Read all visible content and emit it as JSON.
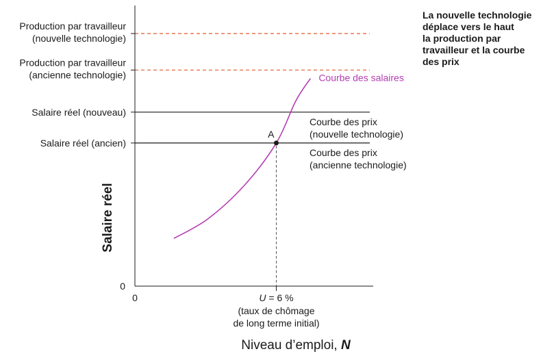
{
  "chart_data": {
    "type": "line",
    "title": "",
    "xlabel": "Niveau d’emploi, ",
    "xlabel_var": "N",
    "ylabel": "Salaire réel",
    "x_origin_label": "0",
    "y_origin_label": "0",
    "horizontal_lines": [
      {
        "name": "prod_new",
        "label_lines": [
          "Production par travailleur",
          "(nouvelle technologie)"
        ],
        "style": "dashed",
        "color": "#e0592a",
        "level": 0.9
      },
      {
        "name": "prod_old",
        "label_lines": [
          "Production par travailleur",
          "(ancienne technologie)"
        ],
        "style": "dashed",
        "color": "#e0592a",
        "level": 0.77
      },
      {
        "name": "wage_new",
        "label": "Salaire réel (nouveau)",
        "right_label_lines": [
          "Courbe des prix",
          "(nouvelle technologie)"
        ],
        "style": "solid",
        "color": "#1a1a1a",
        "level": 0.62
      },
      {
        "name": "wage_old",
        "label": "Salaire réel (ancien)",
        "right_label_lines": [
          "Courbe des prix",
          "(ancienne technologie)"
        ],
        "style": "solid",
        "color": "#1a1a1a",
        "level": 0.51
      }
    ],
    "wage_curve": {
      "name": "Courbe des salaires",
      "color": "#b43cb4",
      "x": [
        0.16,
        0.3,
        0.45,
        0.58,
        0.66,
        0.72
      ],
      "y": [
        0.17,
        0.24,
        0.36,
        0.51,
        0.66,
        0.74
      ]
    },
    "point": {
      "label": "A",
      "x": 0.58,
      "y": 0.51
    },
    "x_annotation": {
      "var": "U",
      "rest": " = 6 %",
      "lines": [
        "(taux de chômage",
        "de long terme initial)"
      ]
    }
  },
  "note": {
    "lines": [
      "La nouvelle technologie",
      "déplace vers le haut",
      "la production par",
      "travailleur et la courbe",
      "des prix"
    ]
  }
}
